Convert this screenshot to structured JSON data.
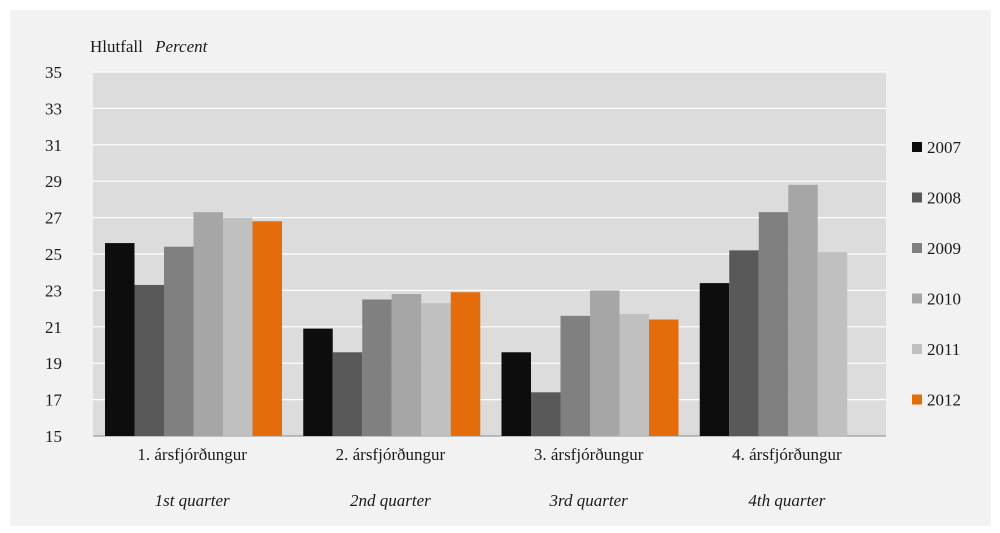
{
  "chart_data": {
    "type": "bar",
    "ylabel_is": "Hlutfall",
    "ylabel_en": "Percent",
    "ylim": [
      15,
      35
    ],
    "yticks": [
      15,
      17,
      19,
      21,
      23,
      25,
      27,
      29,
      31,
      33,
      35
    ],
    "grid": true,
    "legend_position": "right",
    "categories": [
      {
        "is": "1. ársfjórðungur",
        "en": "1st quarter"
      },
      {
        "is": "2. ársfjórðungur",
        "en": "2nd quarter"
      },
      {
        "is": "3. ársfjórðungur",
        "en": "3rd quarter"
      },
      {
        "is": "4. ársfjórðungur",
        "en": "4th quarter"
      }
    ],
    "series": [
      {
        "name": "2007",
        "color": "#0d0d0d",
        "values": [
          25.6,
          20.9,
          19.6,
          23.4
        ]
      },
      {
        "name": "2008",
        "color": "#595959",
        "values": [
          23.3,
          19.6,
          17.4,
          25.2
        ]
      },
      {
        "name": "2009",
        "color": "#808080",
        "values": [
          25.4,
          22.5,
          21.6,
          27.3
        ]
      },
      {
        "name": "2010",
        "color": "#a6a6a6",
        "values": [
          27.3,
          22.8,
          23.0,
          28.8
        ]
      },
      {
        "name": "2011",
        "color": "#c0c0c0",
        "values": [
          27.0,
          22.3,
          21.7,
          25.1
        ]
      },
      {
        "name": "2012",
        "color": "#e46c0a",
        "values": [
          26.8,
          22.9,
          21.4,
          null
        ]
      }
    ]
  }
}
